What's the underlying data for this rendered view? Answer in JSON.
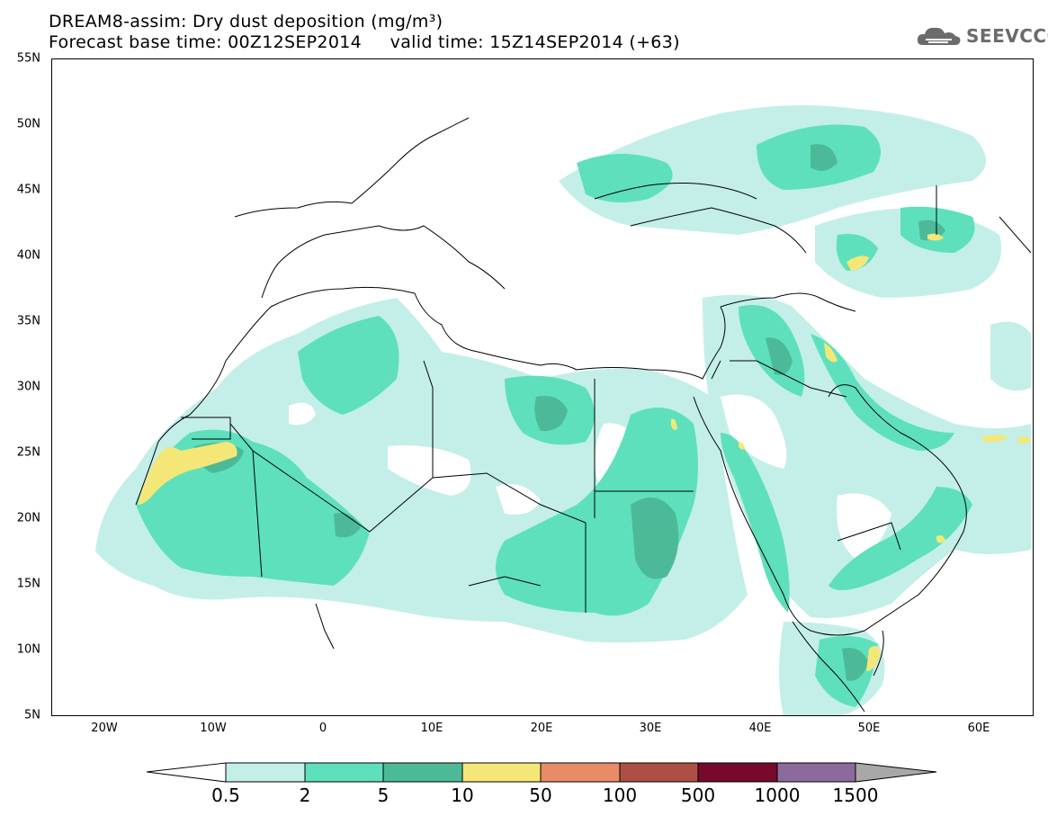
{
  "title_line1": "DREAM8-assim: Dry dust deposition (mg/m³)",
  "title_line2": "Forecast base time: 00Z12SEP2014     valid time: 15Z14SEP2014 (+63)",
  "logo_text": "SEEVCCC",
  "y_axis_labels": [
    "55N",
    "50N",
    "45N",
    "40N",
    "35N",
    "30N",
    "25N",
    "20N",
    "15N",
    "10N",
    "5N"
  ],
  "x_axis_labels": [
    "20W",
    "10W",
    "0",
    "10E",
    "20E",
    "30E",
    "40E",
    "50E",
    "60E"
  ],
  "colorbar": {
    "labels": [
      "0.5",
      "2",
      "5",
      "10",
      "50",
      "100",
      "500",
      "1000",
      "1500"
    ],
    "colors": [
      "#c3efe8",
      "#5ee0bc",
      "#4cba98",
      "#f5e777",
      "#e88c68",
      "#ac5043",
      "#770a2c",
      "#8c6a9c",
      "#a8a8a8"
    ]
  },
  "colors": {
    "frame": "#000000",
    "border_lines": "#000000",
    "logo": "#6b6b6b"
  }
}
